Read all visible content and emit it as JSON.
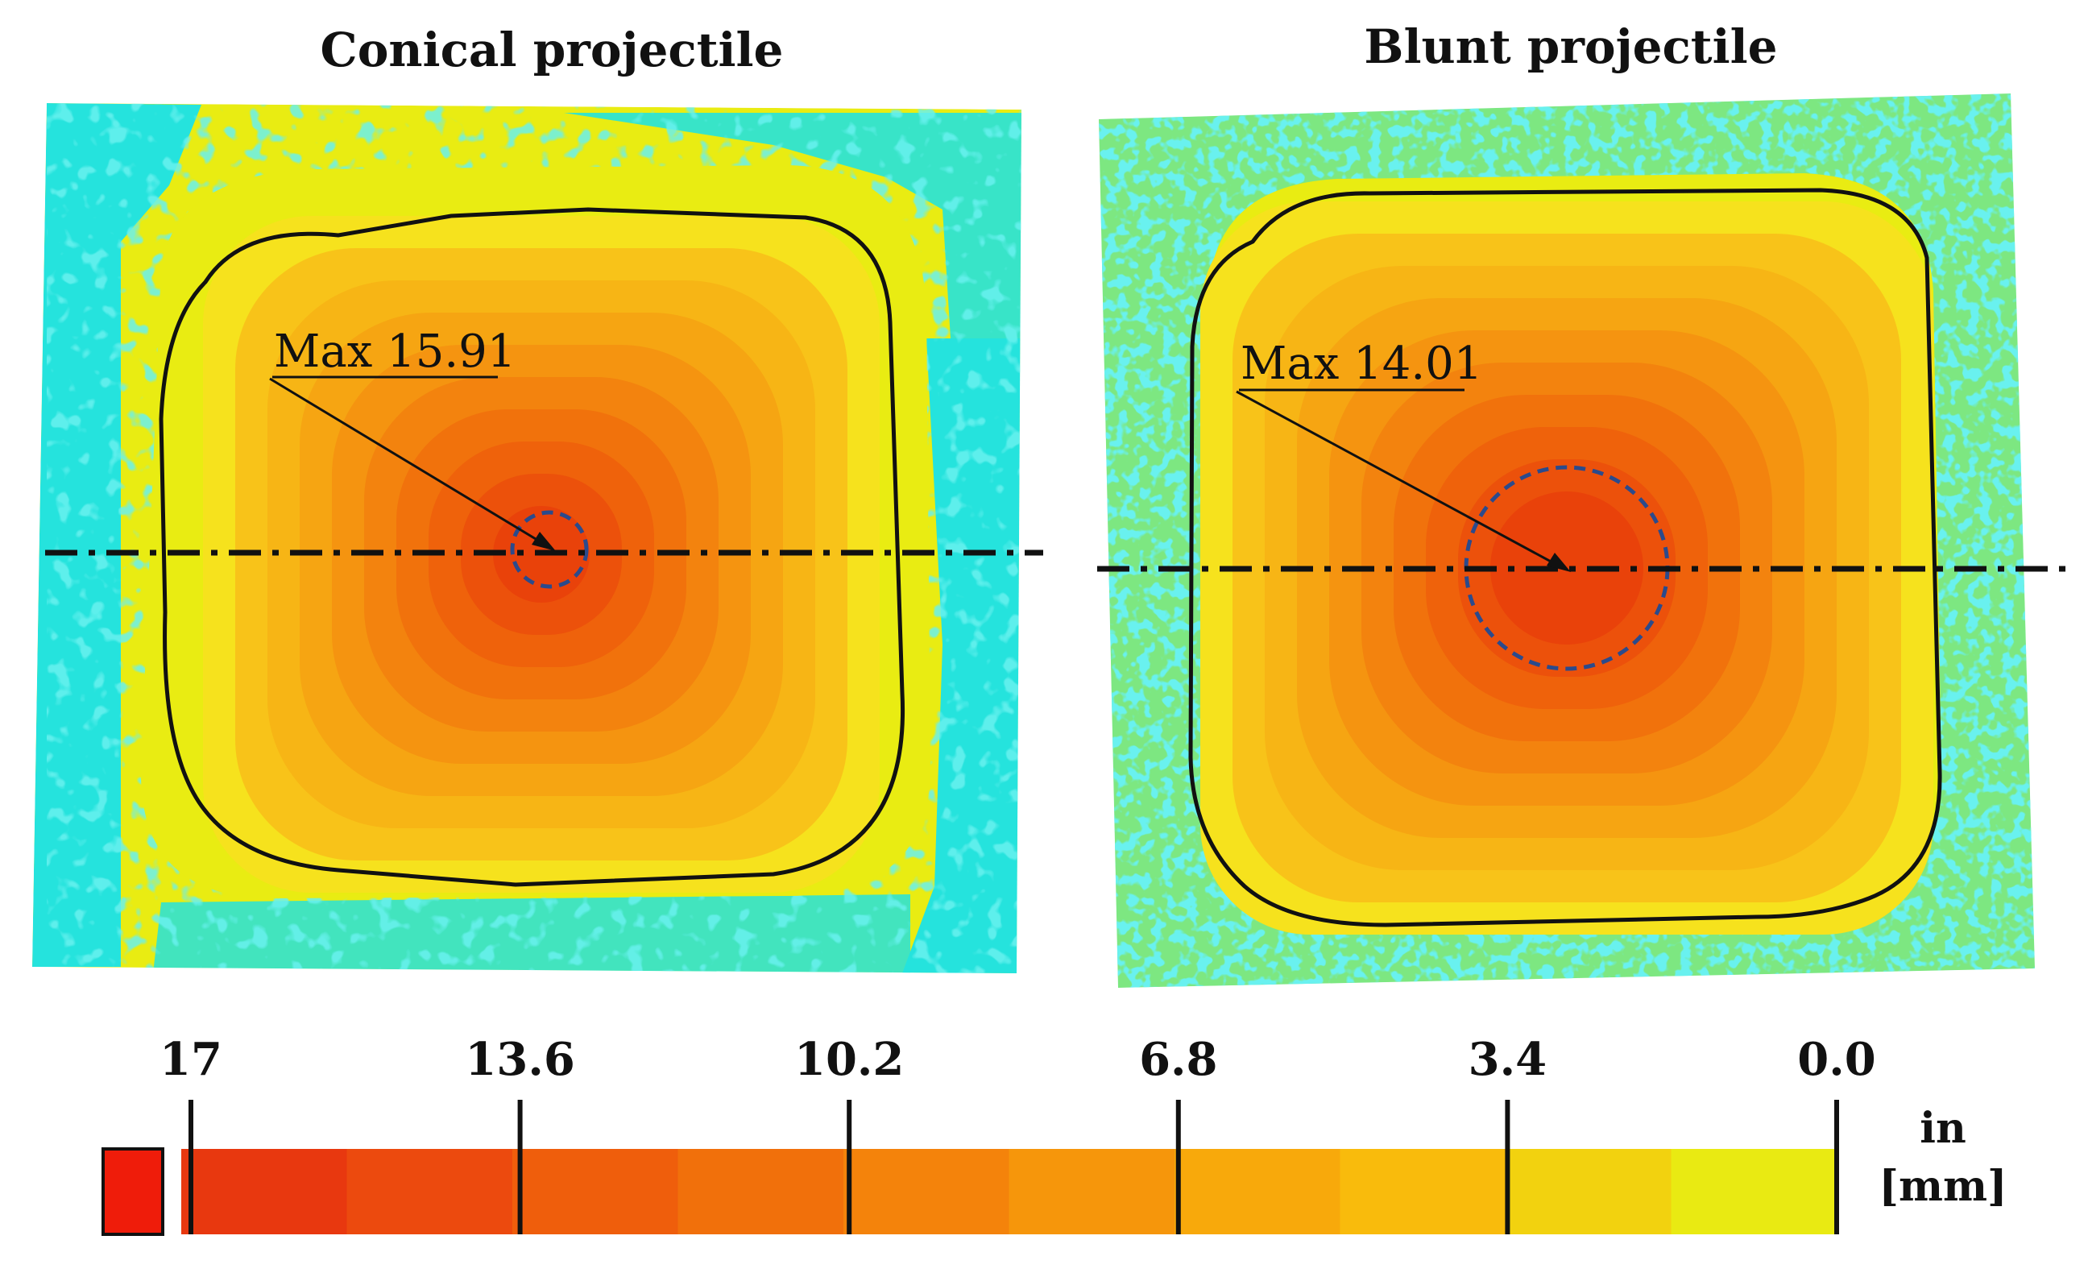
{
  "panels": [
    {
      "id": "conical",
      "title": "Conical projectile",
      "max_label": "Max 15.91"
    },
    {
      "id": "blunt",
      "title": "Blunt projectile",
      "max_label": "Max 14.01"
    }
  ],
  "colorbar": {
    "tick_labels": [
      "17",
      "13.6",
      "10.2",
      "6.8",
      "3.4",
      "0.0"
    ],
    "unit_line1": "in",
    "unit_line2": "[mm]",
    "band_colors": [
      "#e8380f",
      "#ec4a0e",
      "#ef5e0c",
      "#f1700b",
      "#f4830b",
      "#f6960b",
      "#f8a90b",
      "#f9bb0c",
      "#f2d20f",
      "#e9ea12"
    ],
    "overflow_color": "#ef1c0a"
  },
  "contour_colors": [
    "#f6e21d",
    "#f8c319",
    "#f7b515",
    "#f6a512",
    "#f59410",
    "#f3830e",
    "#f1720c",
    "#ef620b",
    "#ec510b",
    "#e9420a"
  ],
  "background_colors": {
    "base": "#e9ec12",
    "cyan": "#25e3dd"
  }
}
